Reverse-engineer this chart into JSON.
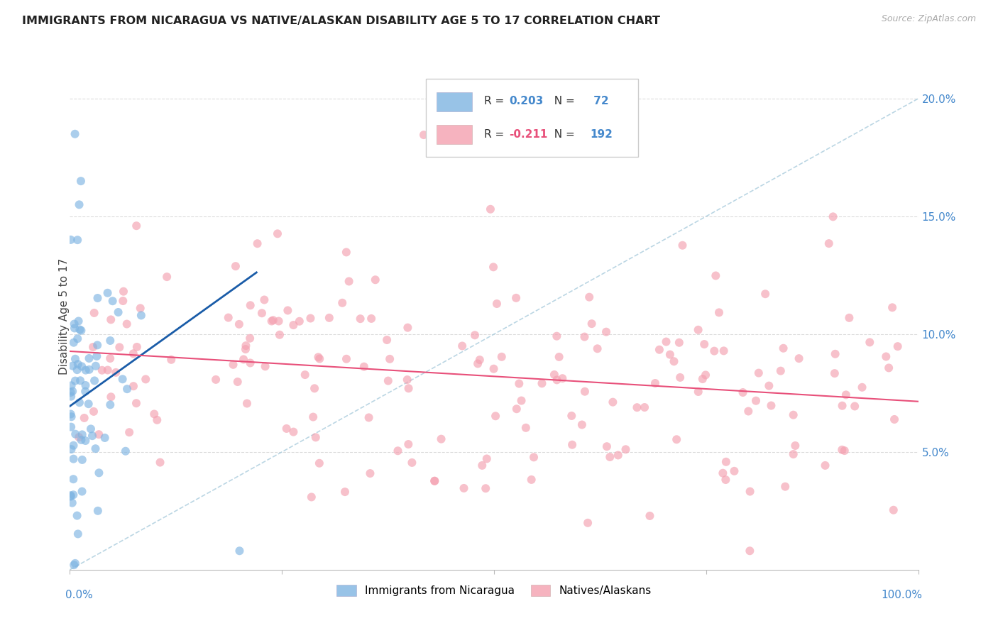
{
  "title": "IMMIGRANTS FROM NICARAGUA VS NATIVE/ALASKAN DISABILITY AGE 5 TO 17 CORRELATION CHART",
  "source": "Source: ZipAtlas.com",
  "ylabel": "Disability Age 5 to 17",
  "ylabel_ticks": [
    "5.0%",
    "10.0%",
    "15.0%",
    "20.0%"
  ],
  "ylabel_tick_vals": [
    0.05,
    0.1,
    0.15,
    0.2
  ],
  "legend_blue_label": "Immigrants from Nicaragua",
  "legend_pink_label": "Natives/Alaskans",
  "R_blue": 0.203,
  "N_blue": 72,
  "R_pink": -0.211,
  "N_pink": 192,
  "blue_color": "#7EB4E2",
  "pink_color": "#F4A0B0",
  "blue_line_color": "#1A5CA8",
  "pink_line_color": "#E8507A",
  "dashed_line_color": "#AACCDD",
  "background_color": "#FFFFFF",
  "grid_color": "#CCCCCC",
  "title_color": "#222222",
  "axis_label_color": "#4488CC",
  "legend_R_color": "#4488CC",
  "legend_N_color": "#4488CC",
  "legend_pink_R_color": "#E8507A",
  "xlim": [
    0.0,
    1.0
  ],
  "ylim": [
    0.0,
    0.215
  ]
}
